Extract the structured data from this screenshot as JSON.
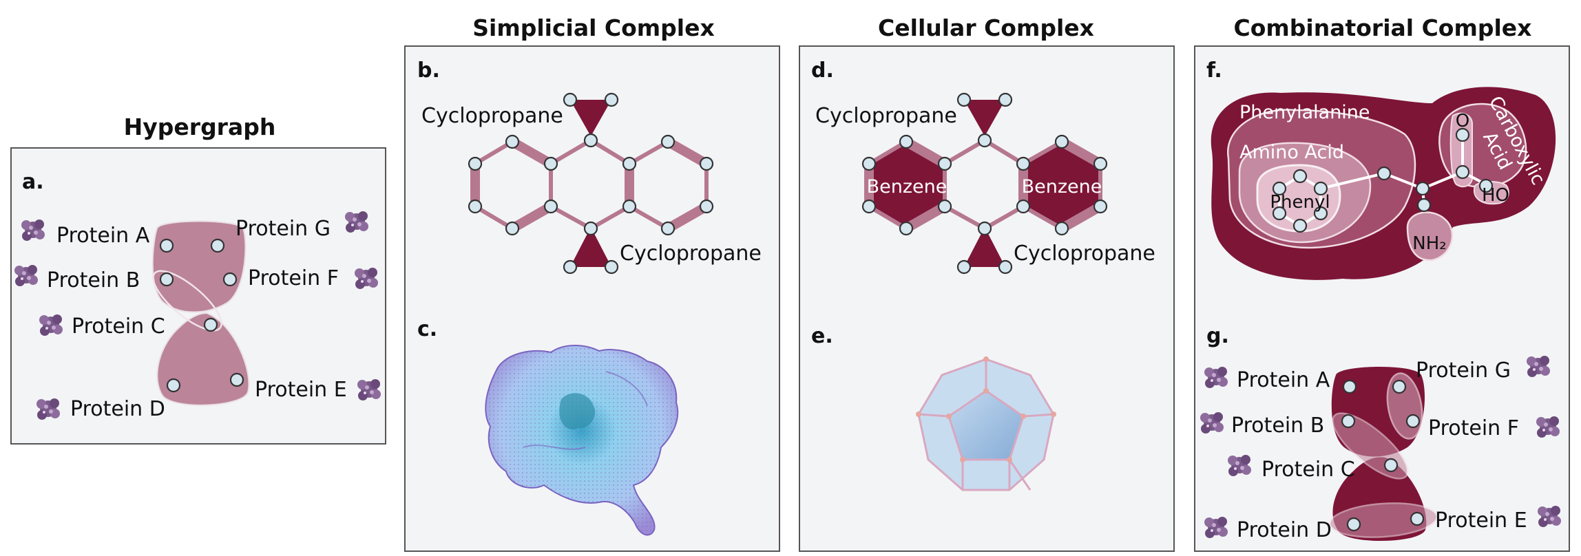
{
  "titles": {
    "hypergraph": "Hypergraph",
    "simplicial": "Simplicial Complex",
    "cellular": "Cellular Complex",
    "combinatorial": "Combinatorial Complex"
  },
  "panel_letters": {
    "a": "a.",
    "b": "b.",
    "c": "c.",
    "d": "d.",
    "e": "e.",
    "f": "f.",
    "g": "g."
  },
  "proteins": {
    "a": "Protein A",
    "b": "Protein B",
    "c": "Protein C",
    "d": "Protein D",
    "e": "Protein E",
    "f": "Protein F",
    "g": "Protein G"
  },
  "molecule_labels": {
    "cyclopropane_top": "Cyclopropane",
    "cyclopropane_bottom": "Cyclopropane",
    "benzene_left": "Benzene",
    "benzene_right": "Benzene"
  },
  "phenylalanine": {
    "phenylalanine": "Phenylalanine",
    "amino_acid": "Amino Acid",
    "phenyl": "Phenyl",
    "carboxylic_line1": "Carboxylic",
    "carboxylic_line2": "Acid",
    "o": "O",
    "ho": "HO",
    "nh2": "NH₂"
  },
  "colors": {
    "panel_bg": "#f3f4f6",
    "light_pink": "#b6788f",
    "dark_red": "#7d1537",
    "node_fill": "#d5e6ef",
    "protein_icon": "#7a5a8a",
    "mesh_blue": "#9fc8e8",
    "dodecahedron": "#a8c6e6"
  },
  "icons": [
    "protein-structure-icon"
  ]
}
